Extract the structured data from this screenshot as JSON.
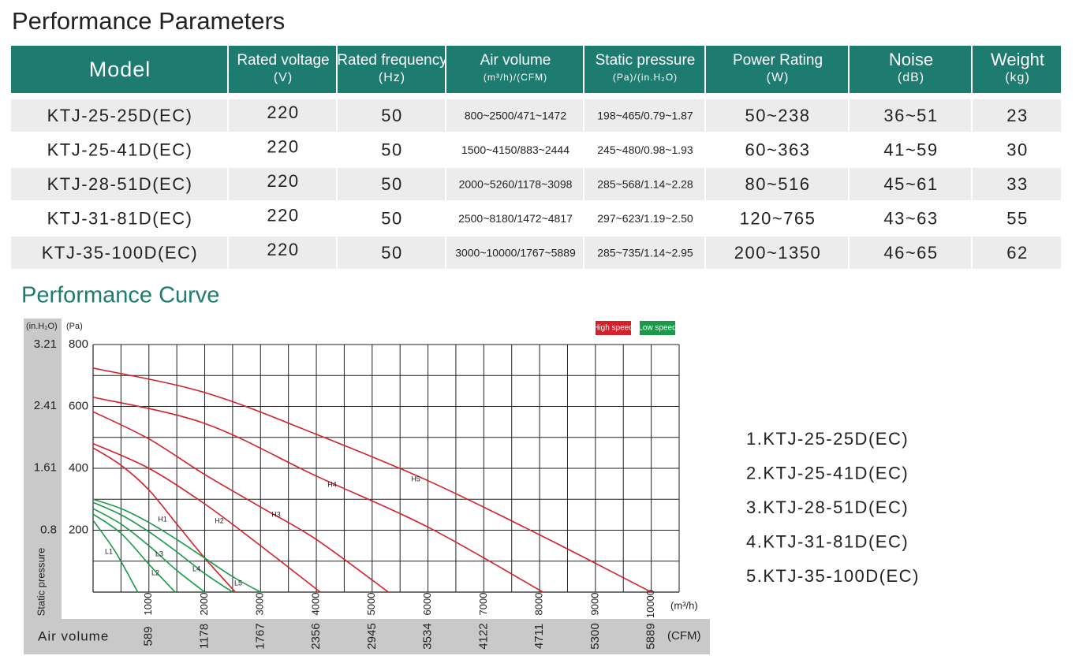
{
  "title": "Performance Parameters",
  "table": {
    "headers": [
      {
        "name": "Model"
      },
      {
        "name": "Rated voltage",
        "unit": "(V)"
      },
      {
        "name": "Rated frequency",
        "unit": "(Hz)"
      },
      {
        "name": "Air volume",
        "unit": "(m³/h)/(CFM)"
      },
      {
        "name": "Static pressure",
        "unit": "(Pa)/(in.H₂O)"
      },
      {
        "name": "Power Rating",
        "unit": "(W)"
      },
      {
        "name": "Noise",
        "unit": "(dB)"
      },
      {
        "name": "Weight",
        "unit": "(kg)"
      }
    ],
    "rows": [
      [
        "KTJ-25-25D(EC)",
        220,
        50,
        "800~2500/471~1472",
        "198~465/0.79~1.87",
        "50~238",
        "36~51",
        23
      ],
      [
        "KTJ-25-41D(EC)",
        220,
        50,
        "1500~4150/883~2444",
        "245~480/0.98~1.93",
        "60~363",
        "41~59",
        30
      ],
      [
        "KTJ-28-51D(EC)",
        220,
        50,
        "2000~5260/1178~3098",
        "285~568/1.14~2.28",
        "80~516",
        "45~61",
        33
      ],
      [
        "KTJ-31-81D(EC)",
        220,
        50,
        "2500~8180/1472~4817",
        "297~623/1.19~2.50",
        "120~765",
        "43~63",
        55
      ],
      [
        "KTJ-35-100D(EC)",
        220,
        50,
        "3000~10000/1767~5889",
        "285~735/1.14~2.95",
        "200~1350",
        "46~65",
        62
      ]
    ]
  },
  "curve_title": "Performance Curve",
  "chart_data": {
    "type": "line",
    "y_label": "Static pressure",
    "x_label": "Air volume",
    "y_unit": "(Pa)",
    "y2_unit": "(in.H₂O)",
    "x_unit": "(m³/h)",
    "x2_unit": "(CFM)",
    "xlim": [
      0,
      10500
    ],
    "xticks": [
      1000,
      2000,
      3000,
      4000,
      5000,
      6000,
      7000,
      8000,
      9000,
      10000
    ],
    "x2lim": [
      0,
      6183
    ],
    "x2ticks": [
      589,
      1178,
      1767,
      2356,
      2945,
      3534,
      4122,
      4711,
      5300,
      5889
    ],
    "ylim": [
      0,
      800
    ],
    "yticks": [
      200,
      400,
      600,
      800
    ],
    "y2lim": [
      0,
      3.21
    ],
    "y2ticks": [
      0.8,
      1.61,
      2.41,
      3.21
    ],
    "xgrid": [
      500,
      1000,
      1500,
      2000,
      2500,
      3000,
      3500,
      4000,
      4500,
      5000,
      5500,
      6000,
      6500,
      7000,
      7500,
      8000,
      8500,
      9000,
      9500,
      10000,
      10500
    ],
    "ygrid": [
      100,
      200,
      300,
      400,
      500,
      600,
      700,
      800
    ],
    "legend": [
      {
        "label": "High speed",
        "color": "#d4202c"
      },
      {
        "label": "Low speed",
        "color": "#1a9a48"
      }
    ],
    "series": [
      {
        "name": "H1",
        "color": "#d4202c",
        "x": [
          0,
          500,
          1000,
          1500,
          2000,
          2550
        ],
        "values": [
          466,
          410,
          330,
          220,
          110,
          0
        ]
      },
      {
        "name": "H2",
        "color": "#d4202c",
        "x": [
          0,
          1000,
          2000,
          3000,
          4070
        ],
        "values": [
          480,
          400,
          285,
          150,
          0
        ]
      },
      {
        "name": "H3",
        "color": "#d4202c",
        "x": [
          0,
          1000,
          2000,
          3000,
          4000,
          5290
        ],
        "values": [
          583,
          495,
          380,
          275,
          170,
          0
        ]
      },
      {
        "name": "H4",
        "color": "#d4202c",
        "x": [
          0,
          2000,
          4000,
          6000,
          8060
        ],
        "values": [
          630,
          545,
          375,
          210,
          0
        ]
      },
      {
        "name": "H5",
        "color": "#d4202c",
        "x": [
          0,
          2000,
          4000,
          6000,
          8000,
          10000
        ],
        "values": [
          724,
          645,
          510,
          360,
          185,
          0
        ]
      },
      {
        "name": "L1",
        "color": "#1a9a48",
        "x": [
          0,
          400,
          800
        ],
        "values": [
          232,
          130,
          0
        ]
      },
      {
        "name": "L2",
        "color": "#1a9a48",
        "x": [
          0,
          500,
          1000,
          1470
        ],
        "values": [
          252,
          190,
          90,
          0
        ]
      },
      {
        "name": "L3",
        "color": "#1a9a48",
        "x": [
          0,
          500,
          1000,
          1500,
          2000
        ],
        "values": [
          270,
          220,
          150,
          70,
          0
        ]
      },
      {
        "name": "L4",
        "color": "#1a9a48",
        "x": [
          0,
          500,
          1000,
          1500,
          2000,
          2500
        ],
        "values": [
          290,
          250,
          195,
          130,
          60,
          0
        ]
      },
      {
        "name": "L5",
        "color": "#1a9a48",
        "x": [
          0,
          500,
          1000,
          1500,
          2000,
          2500,
          3000
        ],
        "values": [
          300,
          270,
          225,
          170,
          110,
          50,
          0
        ]
      }
    ]
  },
  "model_list": [
    "1.KTJ-25-25D(EC)",
    "2.KTJ-25-41D(EC)",
    "3.KTJ-28-51D(EC)",
    "4.KTJ-31-81D(EC)",
    "5.KTJ-35-100D(EC)"
  ]
}
